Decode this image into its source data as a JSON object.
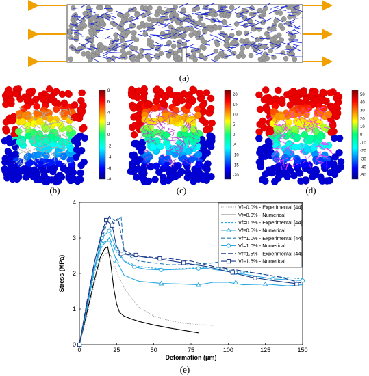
{
  "panels": {
    "a": {
      "caption": "(a)"
    },
    "b": {
      "caption": "(b)",
      "colorbar": {
        "ticks": [
          "8",
          "6",
          "4",
          "2",
          "0",
          "-2",
          "-4",
          "-6",
          "-8"
        ],
        "min": -8,
        "max": 8
      }
    },
    "c": {
      "caption": "(c)",
      "colorbar": {
        "ticks": [
          "20",
          "15",
          "10",
          "5",
          "0",
          "-5",
          "-10",
          "-15",
          "-20"
        ],
        "min": -22,
        "max": 22
      }
    },
    "d": {
      "caption": "(d)",
      "colorbar": {
        "ticks": [
          "50",
          "40",
          "30",
          "20",
          "10",
          "0",
          "-10",
          "-20",
          "-30",
          "-40",
          "-50"
        ],
        "min": -55,
        "max": 55
      }
    },
    "e": {
      "caption": "(e)"
    }
  },
  "chart_data": {
    "type": "line",
    "xlabel": "Deformation (μm)",
    "ylabel": "Stress (MPa)",
    "xlim": [
      0,
      150
    ],
    "ylim": [
      0,
      4
    ],
    "xticks": [
      "0",
      "25",
      "50",
      "75",
      "100",
      "125",
      "150"
    ],
    "yticks": [
      "0",
      "1",
      "2",
      "3",
      "4"
    ],
    "legend_position": "top-right",
    "series": [
      {
        "name": "Vf=0.0% - Experimental [44]",
        "color": "#999999",
        "dash": "1,1.5",
        "marker": "none",
        "x": [
          0,
          5,
          10,
          14,
          17,
          20,
          23,
          26,
          30,
          35,
          40,
          50,
          60,
          70,
          80,
          90
        ],
        "y": [
          0,
          0.8,
          1.7,
          2.35,
          2.55,
          2.6,
          2.3,
          1.95,
          1.6,
          1.3,
          1.05,
          0.8,
          0.68,
          0.6,
          0.56,
          0.54
        ]
      },
      {
        "name": "Vf=0.0% - Numerical",
        "color": "#000000",
        "dash": "",
        "marker": "none",
        "x": [
          0,
          5,
          10,
          14,
          17,
          19,
          21,
          23,
          25,
          27,
          30,
          35,
          40,
          50,
          60,
          70,
          80
        ],
        "y": [
          0,
          0.9,
          1.8,
          2.45,
          2.7,
          2.75,
          2.3,
          1.6,
          1.15,
          0.9,
          0.8,
          0.72,
          0.65,
          0.55,
          0.47,
          0.4,
          0.33
        ]
      },
      {
        "name": "Vf=0.5% - Experimental [44]",
        "color": "#29a8e0",
        "dash": "3,2",
        "marker": "none",
        "x": [
          0,
          5,
          10,
          15,
          20,
          25,
          30,
          40,
          50,
          60,
          75,
          90,
          105,
          120,
          135,
          150
        ],
        "y": [
          0,
          1.05,
          2.0,
          2.75,
          3.0,
          2.6,
          2.35,
          2.2,
          2.15,
          2.12,
          2.15,
          2.18,
          2.05,
          2.0,
          1.9,
          1.85
        ]
      },
      {
        "name": "Vf=0.5% - Numerical",
        "color": "#29a8e0",
        "dash": "",
        "marker": "triangle",
        "x": [
          0,
          5,
          10,
          15,
          20,
          25,
          30,
          40,
          55,
          70,
          80,
          90,
          100,
          110,
          125,
          140,
          150
        ],
        "y": [
          0,
          1.0,
          2.1,
          2.85,
          2.95,
          2.35,
          1.95,
          1.78,
          1.72,
          1.7,
          1.68,
          1.75,
          1.75,
          1.68,
          1.7,
          1.65,
          1.68
        ],
        "marker_x": [
          0,
          15,
          20,
          25,
          55,
          80,
          105,
          125
        ],
        "marker_y": [
          0,
          2.85,
          2.95,
          2.35,
          1.72,
          1.68,
          1.75,
          1.7
        ]
      },
      {
        "name": "Vf=1.0% - Experimental [44]",
        "color": "#1e78b4",
        "dash": "6,3",
        "marker": "none",
        "x": [
          0,
          5,
          10,
          15,
          20,
          25,
          28,
          30,
          35,
          40,
          50,
          60,
          75,
          90,
          105,
          120,
          135,
          150
        ],
        "y": [
          0,
          1.1,
          2.15,
          2.95,
          3.6,
          3.45,
          3.6,
          2.6,
          2.45,
          2.35,
          2.3,
          2.25,
          2.25,
          2.3,
          2.4,
          2.3,
          2.25,
          2.22
        ]
      },
      {
        "name": "Vf=1.0% - Numerical",
        "color": "#29a8e0",
        "dash": "",
        "marker": "circle",
        "x": [
          0,
          5,
          10,
          15,
          20,
          25,
          30,
          37,
          45,
          55,
          70,
          85,
          100,
          115,
          130,
          150
        ],
        "y": [
          0,
          1.05,
          2.15,
          3.0,
          3.2,
          2.7,
          2.35,
          2.18,
          2.12,
          2.1,
          2.12,
          2.15,
          2.05,
          1.95,
          1.85,
          1.8
        ],
        "marker_x": [
          0,
          15,
          20,
          25,
          37,
          55,
          80,
          105,
          130,
          150
        ],
        "marker_y": [
          0,
          3.0,
          3.2,
          2.7,
          2.18,
          2.1,
          2.14,
          2.02,
          1.85,
          1.8
        ]
      },
      {
        "name": "Vf=1.5% - Experimental [44]",
        "color": "#1a3a8a",
        "dash": "7,3",
        "marker": "none",
        "x": [
          0,
          5,
          10,
          15,
          18,
          20,
          23,
          26,
          30,
          35,
          40,
          50,
          60,
          75,
          90,
          105,
          120,
          135,
          150
        ],
        "y": [
          0,
          1.2,
          2.3,
          3.1,
          3.4,
          3.6,
          3.4,
          3.55,
          2.65,
          2.55,
          2.5,
          2.45,
          2.42,
          2.35,
          2.2,
          2.1,
          2.0,
          1.9,
          1.72
        ]
      },
      {
        "name": "Vf=1.5% - Numerical",
        "color": "#1a3a8a",
        "dash": "",
        "marker": "square",
        "x": [
          0,
          5,
          10,
          15,
          18,
          22,
          25,
          28,
          35,
          45,
          55,
          70,
          85,
          100,
          115,
          130,
          148
        ],
        "y": [
          0,
          1.15,
          2.3,
          3.15,
          3.5,
          3.35,
          2.75,
          2.55,
          2.52,
          2.45,
          2.4,
          2.3,
          2.2,
          2.05,
          1.9,
          1.8,
          1.7
        ],
        "marker_x": [
          0,
          18,
          22,
          28,
          38,
          54,
          70,
          103,
          118,
          146
        ],
        "marker_y": [
          0,
          3.5,
          3.35,
          2.55,
          2.52,
          2.42,
          2.3,
          2.03,
          1.87,
          1.7
        ]
      }
    ]
  }
}
